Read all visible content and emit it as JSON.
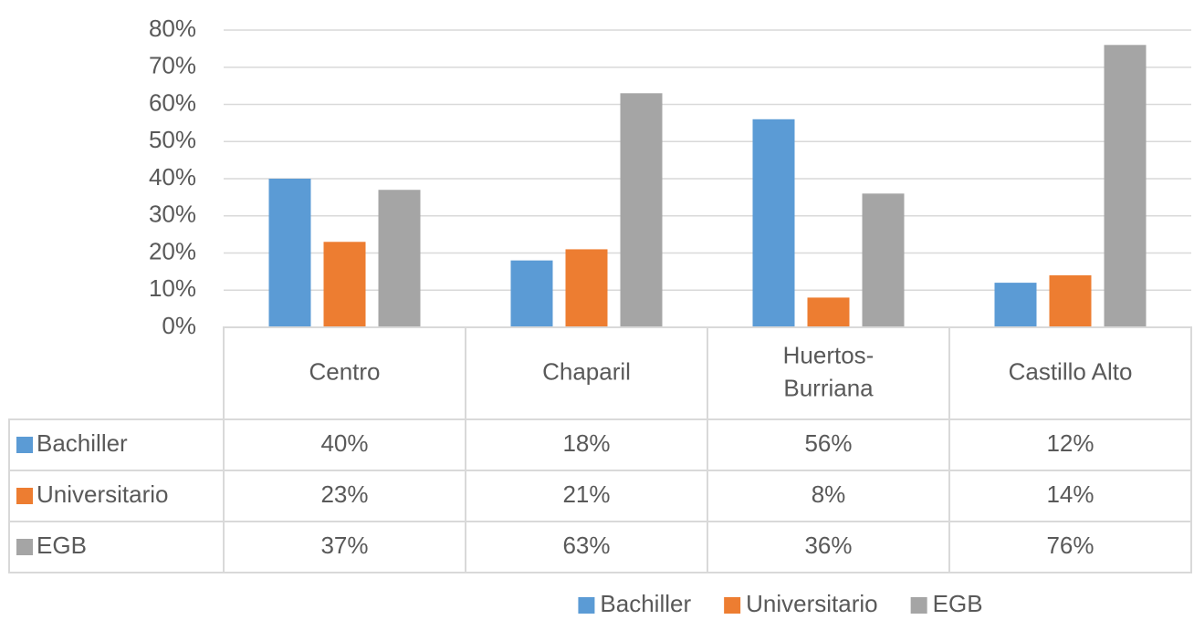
{
  "chart_data": {
    "type": "bar",
    "categories": [
      "Centro",
      "Chaparil",
      "Huertos-Burriana",
      "Castillo Alto"
    ],
    "series": [
      {
        "name": "Bachiller",
        "color": "#5b9bd5",
        "values": [
          40,
          18,
          56,
          12
        ],
        "value_labels": [
          "40%",
          "18%",
          "56%",
          "12%"
        ]
      },
      {
        "name": "Universitario",
        "color": "#ed7d31",
        "values": [
          23,
          21,
          8,
          14
        ],
        "value_labels": [
          "23%",
          "21%",
          "8%",
          "14%"
        ]
      },
      {
        "name": "EGB",
        "color": "#a5a5a5",
        "values": [
          37,
          63,
          36,
          76
        ],
        "value_labels": [
          "37%",
          "63%",
          "36%",
          "76%"
        ]
      }
    ],
    "ylim": [
      0,
      80
    ],
    "yticks": [
      {
        "value": 0,
        "label": "0%"
      },
      {
        "value": 10,
        "label": "10%"
      },
      {
        "value": 20,
        "label": "20%"
      },
      {
        "value": 30,
        "label": "30%"
      },
      {
        "value": 40,
        "label": "40%"
      },
      {
        "value": 50,
        "label": "50%"
      },
      {
        "value": 60,
        "label": "60%"
      },
      {
        "value": 70,
        "label": "70%"
      },
      {
        "value": 80,
        "label": "80%"
      }
    ],
    "grid": true,
    "legend": "bottom",
    "data_table": true
  }
}
